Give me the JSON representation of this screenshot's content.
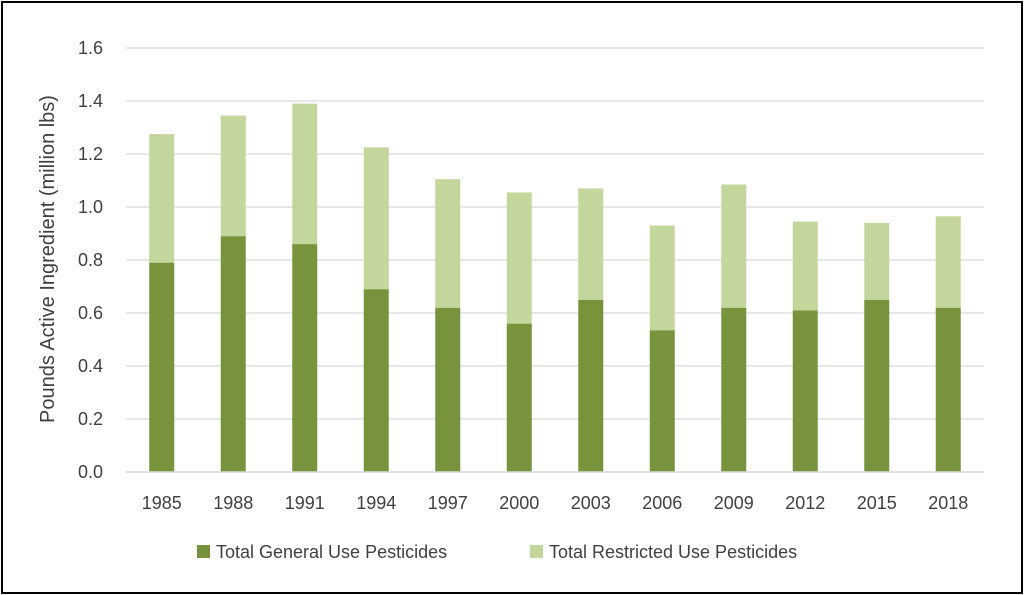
{
  "chart_data": {
    "type": "bar",
    "stacked": true,
    "categories": [
      "1985",
      "1988",
      "1991",
      "1994",
      "1997",
      "2000",
      "2003",
      "2006",
      "2009",
      "2012",
      "2015",
      "2018"
    ],
    "series": [
      {
        "name": "Total General Use Pesticides",
        "color": "#77933c",
        "values": [
          0.79,
          0.89,
          0.86,
          0.69,
          0.62,
          0.56,
          0.65,
          0.535,
          0.62,
          0.61,
          0.65,
          0.62
        ]
      },
      {
        "name": "Total Restricted Use Pesticides",
        "color": "#c3d69b",
        "values": [
          0.485,
          0.455,
          0.53,
          0.535,
          0.485,
          0.495,
          0.42,
          0.395,
          0.465,
          0.335,
          0.29,
          0.345
        ]
      }
    ],
    "ylabel": "Pounds Active Ingredient (million lbs)",
    "xlabel": "",
    "ylim": [
      0,
      1.6
    ],
    "yticks": [
      "0.0",
      "0.2",
      "0.4",
      "0.6",
      "0.8",
      "1.0",
      "1.2",
      "1.4",
      "1.6"
    ],
    "grid": true,
    "legend_position": "bottom"
  }
}
